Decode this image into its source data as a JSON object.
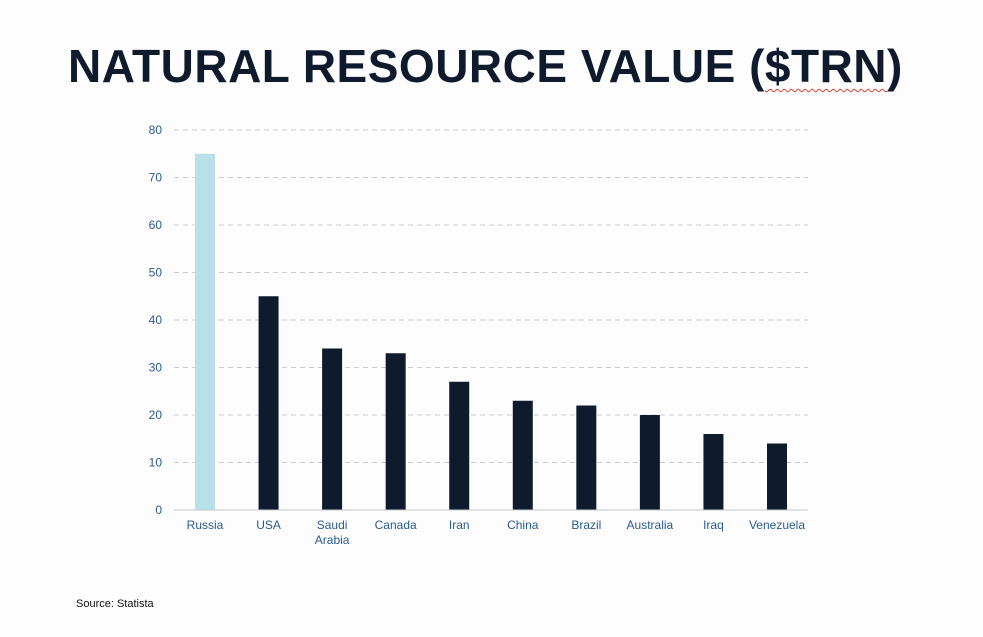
{
  "slide": {
    "title_main": "NATURAL RESOURCE VALUE (",
    "title_marked": "$TRN",
    "title_end": ")",
    "source": "Source: Statista"
  },
  "chart_data": {
    "type": "bar",
    "title": "NATURAL RESOURCE VALUE ($TRN)",
    "xlabel": "",
    "ylabel": "",
    "categories": [
      "Russia",
      "USA",
      "Saudi Arabia",
      "Canada",
      "Iran",
      "China",
      "Brazil",
      "Australia",
      "Iraq",
      "Venezuela"
    ],
    "category_lines": [
      [
        "Russia"
      ],
      [
        "USA"
      ],
      [
        "Saudi",
        "Arabia"
      ],
      [
        "Canada"
      ],
      [
        "Iran"
      ],
      [
        "China"
      ],
      [
        "Brazil"
      ],
      [
        "Australia"
      ],
      [
        "Iraq"
      ],
      [
        "Venezuela"
      ]
    ],
    "values": [
      75,
      45,
      34,
      33,
      27,
      23,
      22,
      20,
      16,
      14
    ],
    "highlight_index": 0,
    "ylim": [
      0,
      80
    ],
    "yticks": [
      0,
      10,
      20,
      30,
      40,
      50,
      60,
      70,
      80
    ],
    "grid": true,
    "legend": "none",
    "colors": {
      "highlight": "#b9e0e8",
      "bar": "#0f1b2c",
      "axis_text": "#2a5b8f",
      "gridline": "#c8ccd2"
    }
  }
}
